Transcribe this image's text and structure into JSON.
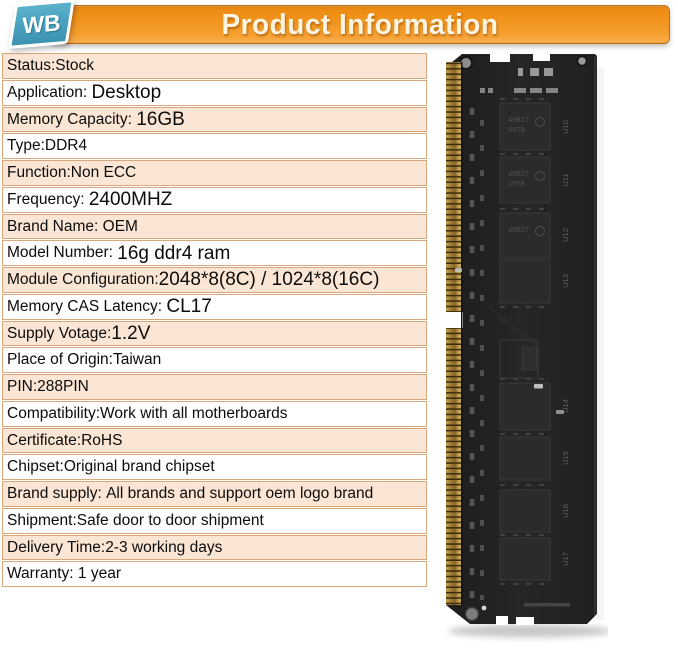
{
  "header": {
    "logo_text": "WB",
    "title": "Product Information"
  },
  "colors": {
    "banner_orange": "#f2951f",
    "banner_border": "#bd6e0c",
    "logo_teal": "#47a0bd",
    "row_peach": "#fbe6d5",
    "table_border": "#d8a87c",
    "pcb_black": "#232323",
    "pin_gold": "#c9a250"
  },
  "spec_table": {
    "rows": [
      {
        "label": "Status:",
        "value": "Stock",
        "emphasis": false
      },
      {
        "label": "Application: ",
        "value": "Desktop",
        "emphasis": true
      },
      {
        "label": "Memory Capacity: ",
        "value": "16GB",
        "emphasis": true
      },
      {
        "label": "Type:",
        "value": "DDR4",
        "emphasis": false
      },
      {
        "label": "Function:",
        "value": "Non ECC",
        "emphasis": false
      },
      {
        "label": "Frequency: ",
        "value": "2400MHZ",
        "emphasis": true
      },
      {
        "label": "Brand Name: ",
        "value": "OEM",
        "emphasis": false
      },
      {
        "label": "Model Number: ",
        "value": "16g ddr4 ram",
        "emphasis": true
      },
      {
        "label": "Module Configuration:",
        "value": "2048*8(8C) / 1024*8(16C)",
        "emphasis": true
      },
      {
        "label": "Memory CAS Latency: ",
        "value": "CL17",
        "emphasis": true
      },
      {
        "label": "Supply Votage:",
        "value": "1.2V",
        "emphasis": true
      },
      {
        "label": "Place of Origin:",
        "value": "Taiwan",
        "emphasis": false
      },
      {
        "label": "PIN:",
        "value": "288PIN",
        "emphasis": false
      },
      {
        "label": "Compatibility:",
        "value": "Work with all motherboards",
        "emphasis": false
      },
      {
        "label": "Certificate:",
        "value": "RoHS",
        "emphasis": false
      },
      {
        "label": "Chipset:",
        "value": "Original brand chipset",
        "emphasis": false
      },
      {
        "label": "Brand supply: ",
        "value": "All brands and support oem logo brand",
        "emphasis": false
      },
      {
        "label": "Shipment:",
        "value": "Safe door to door shipment",
        "emphasis": false
      },
      {
        "label": "Delivery Time:",
        "value": "2-3 working days",
        "emphasis": false
      },
      {
        "label": "Warranty: ",
        "value": "1 year",
        "emphasis": false
      }
    ]
  },
  "product_photo": {
    "description": "DDR4 288-pin desktop memory module, vertical view",
    "chip_labels": [
      "U10",
      "U11",
      "U12",
      "U13",
      "U14",
      "U15",
      "U16",
      "U17"
    ],
    "chip_marking_line1": "40B27",
    "chip_marking_line2": "19TB"
  }
}
